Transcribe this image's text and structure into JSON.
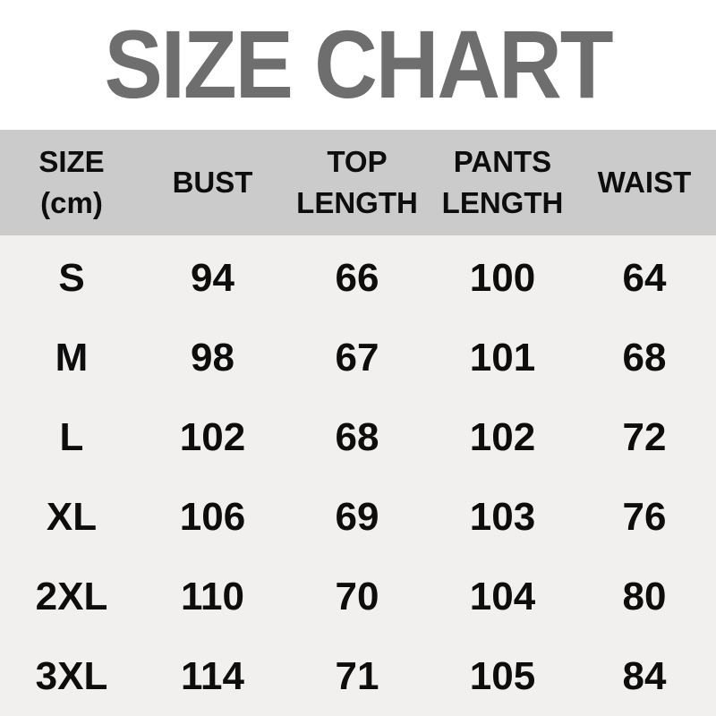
{
  "title": "SIZE CHART",
  "colors": {
    "title_text": "#6e6e6e",
    "title_bg": "#ffffff",
    "header_bg": "#cbcbcb",
    "body_bg": "#f1f0ee",
    "text": "#0d0d0d"
  },
  "table": {
    "headers": [
      "SIZE\n(cm)",
      "BUST",
      "TOP\nLENGTH",
      "PANTS\nLENGTH",
      "WAIST"
    ],
    "rows": [
      {
        "size": "S",
        "bust": "94",
        "top_length": "66",
        "pants_length": "100",
        "waist": "64"
      },
      {
        "size": "M",
        "bust": "98",
        "top_length": "67",
        "pants_length": "101",
        "waist": "68"
      },
      {
        "size": "L",
        "bust": "102",
        "top_length": "68",
        "pants_length": "102",
        "waist": "72"
      },
      {
        "size": "XL",
        "bust": "106",
        "top_length": "69",
        "pants_length": "103",
        "waist": "76"
      },
      {
        "size": "2XL",
        "bust": "110",
        "top_length": "70",
        "pants_length": "104",
        "waist": "80"
      },
      {
        "size": "3XL",
        "bust": "114",
        "top_length": "71",
        "pants_length": "105",
        "waist": "84"
      }
    ]
  },
  "chart_data": {
    "type": "table",
    "title": "SIZE CHART",
    "unit": "cm",
    "columns": [
      "SIZE (cm)",
      "BUST",
      "TOP LENGTH",
      "PANTS LENGTH",
      "WAIST"
    ],
    "rows": [
      [
        "S",
        94,
        66,
        100,
        64
      ],
      [
        "M",
        98,
        67,
        101,
        68
      ],
      [
        "L",
        102,
        68,
        102,
        72
      ],
      [
        "XL",
        106,
        69,
        103,
        76
      ],
      [
        "2XL",
        110,
        70,
        104,
        80
      ],
      [
        "3XL",
        114,
        71,
        105,
        84
      ]
    ]
  }
}
